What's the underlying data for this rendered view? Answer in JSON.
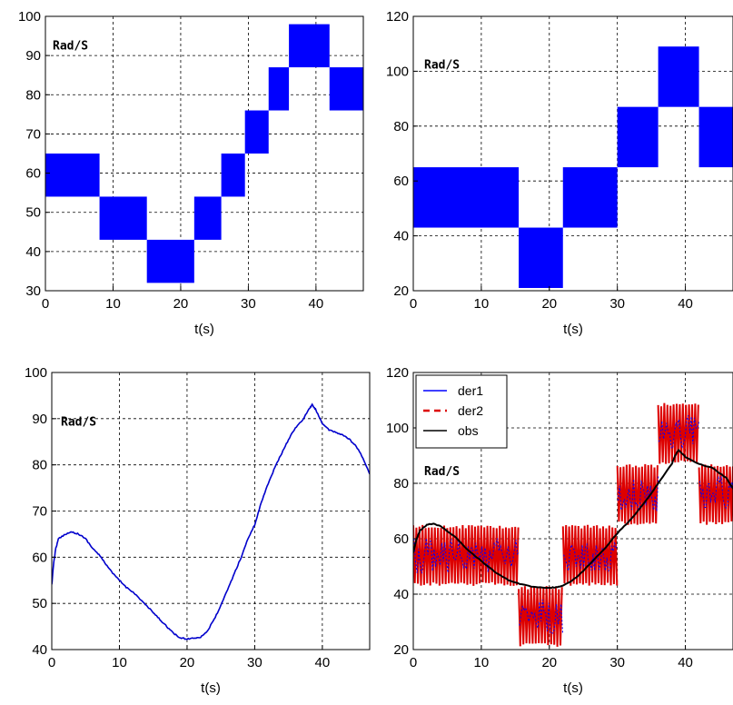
{
  "chart_data": [
    {
      "type": "area",
      "xlabel": "t(s)",
      "annotation": "Rad/S",
      "xlim": [
        0,
        47
      ],
      "ylim": [
        30,
        100
      ],
      "xticks": [
        0,
        10,
        20,
        30,
        40
      ],
      "yticks": [
        30,
        40,
        50,
        60,
        70,
        80,
        90,
        100
      ],
      "grid": true,
      "color": "#0000ff",
      "bands": [
        {
          "t0": 0,
          "t1": 8,
          "lo": 54,
          "hi": 65
        },
        {
          "t0": 8,
          "t1": 15,
          "lo": 43,
          "hi": 54
        },
        {
          "t0": 15,
          "t1": 22,
          "lo": 32,
          "hi": 43
        },
        {
          "t0": 22,
          "t1": 26,
          "lo": 43,
          "hi": 54
        },
        {
          "t0": 26,
          "t1": 29.5,
          "lo": 54,
          "hi": 65
        },
        {
          "t0": 29.5,
          "t1": 33,
          "lo": 65,
          "hi": 76
        },
        {
          "t0": 33,
          "t1": 36,
          "lo": 76,
          "hi": 87
        },
        {
          "t0": 36,
          "t1": 42,
          "lo": 87,
          "hi": 98
        },
        {
          "t0": 42,
          "t1": 47,
          "lo": 76,
          "hi": 87
        }
      ]
    },
    {
      "type": "area",
      "xlabel": "t(s)",
      "annotation": "Rad/S",
      "xlim": [
        0,
        47
      ],
      "ylim": [
        20,
        120
      ],
      "xticks": [
        0,
        10,
        20,
        30,
        40
      ],
      "yticks": [
        20,
        40,
        60,
        80,
        100,
        120
      ],
      "grid": true,
      "color": "#0000ff",
      "bands": [
        {
          "t0": 0,
          "t1": 15.5,
          "lo": 43,
          "hi": 65
        },
        {
          "t0": 15.5,
          "t1": 22,
          "lo": 21,
          "hi": 43
        },
        {
          "t0": 22,
          "t1": 30,
          "lo": 43,
          "hi": 65
        },
        {
          "t0": 30,
          "t1": 36,
          "lo": 65,
          "hi": 87
        },
        {
          "t0": 36,
          "t1": 42,
          "lo": 87,
          "hi": 109
        },
        {
          "t0": 42,
          "t1": 47,
          "lo": 65,
          "hi": 87
        }
      ]
    },
    {
      "type": "line",
      "xlabel": "t(s)",
      "annotation": "Rad/S",
      "xlim": [
        0,
        47
      ],
      "ylim": [
        40,
        100
      ],
      "xticks": [
        0,
        10,
        20,
        30,
        40
      ],
      "yticks": [
        40,
        50,
        60,
        70,
        80,
        90,
        100
      ],
      "grid": true,
      "series": [
        {
          "color": "#0000cc",
          "x": [
            0,
            0.3,
            0.6,
            1,
            2,
            3,
            4,
            5,
            6,
            7,
            8,
            9,
            10,
            11,
            12,
            13,
            14,
            15,
            16,
            17,
            18,
            19,
            20,
            21,
            22,
            23,
            24,
            25,
            26,
            27,
            28,
            29,
            30,
            31,
            32,
            33,
            34,
            35,
            36,
            37,
            38,
            38.5,
            39,
            40,
            41,
            42,
            43,
            44,
            45,
            46,
            47
          ],
          "y": [
            54,
            59,
            62,
            64,
            65,
            65.5,
            65,
            64,
            62,
            60.5,
            58.5,
            56.5,
            55,
            53.5,
            52.5,
            51,
            49.5,
            48,
            46.5,
            45,
            43.5,
            42.5,
            42.3,
            42.5,
            42.7,
            44,
            46.5,
            49.5,
            53,
            56.5,
            60,
            64,
            67,
            72,
            76,
            79.5,
            82.5,
            85.5,
            88,
            89.5,
            92,
            93,
            92,
            89,
            87.5,
            87,
            86.5,
            85.5,
            84,
            81.5,
            78
          ]
        }
      ]
    },
    {
      "type": "line",
      "xlabel": "t(s)",
      "annotation": "Rad/S",
      "xlim": [
        0,
        47
      ],
      "ylim": [
        20,
        120
      ],
      "xticks": [
        0,
        10,
        20,
        30,
        40
      ],
      "yticks": [
        20,
        40,
        60,
        80,
        100,
        120
      ],
      "grid": true,
      "legend": {
        "position": "top-left",
        "entries": [
          "der1",
          "der2",
          "obs"
        ]
      },
      "bands": [
        {
          "t0": 0,
          "t1": 15.5,
          "lo": 43,
          "hi": 65
        },
        {
          "t0": 15.5,
          "t1": 22,
          "lo": 21,
          "hi": 43
        },
        {
          "t0": 22,
          "t1": 30,
          "lo": 43,
          "hi": 65
        },
        {
          "t0": 30,
          "t1": 36,
          "lo": 65,
          "hi": 87
        },
        {
          "t0": 36,
          "t1": 42,
          "lo": 87,
          "hi": 109
        },
        {
          "t0": 42,
          "t1": 47,
          "lo": 65,
          "hi": 87
        }
      ],
      "series": [
        {
          "name": "der1",
          "color": "#0000ff",
          "style": "solid"
        },
        {
          "name": "der2",
          "color": "#dd0000",
          "style": "dashed"
        },
        {
          "name": "obs",
          "color": "#000000",
          "style": "solid",
          "x": [
            0,
            0.5,
            1,
            2,
            3,
            4,
            6,
            8,
            10,
            12,
            14,
            16,
            18,
            20,
            21,
            22,
            24,
            26,
            28,
            30,
            32,
            34,
            36,
            38,
            38.5,
            39,
            40,
            42,
            44,
            46,
            47
          ],
          "y": [
            55,
            60,
            63,
            65,
            65.5,
            64.5,
            61,
            56,
            52,
            48,
            45,
            43.5,
            42.5,
            42.3,
            42.5,
            43,
            46,
            51,
            56,
            62,
            67,
            73,
            80,
            87,
            90,
            92,
            89.5,
            87,
            85.5,
            82,
            78
          ]
        }
      ]
    }
  ]
}
